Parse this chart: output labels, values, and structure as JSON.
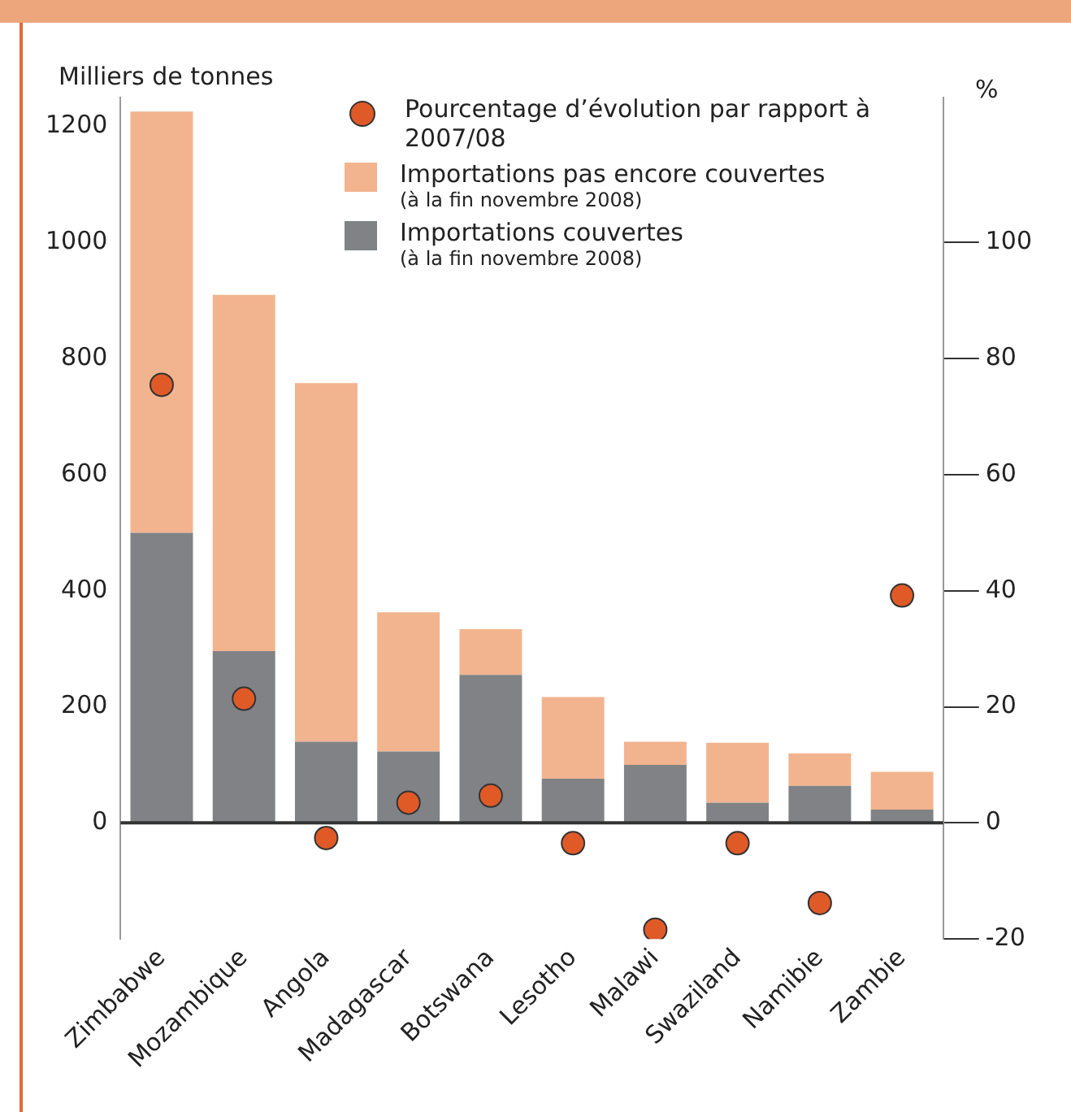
{
  "chart_data": {
    "type": "bar",
    "stacked": true,
    "ylabel": "Milliers de tonnes",
    "y2label": "%",
    "categories": [
      "Zimbabwe",
      "Mozambique",
      "Angola",
      "Madagascar",
      "Botswana",
      "Lesotho",
      "Malawi",
      "Swaziland",
      "Namibie",
      "Zambie"
    ],
    "series": [
      {
        "name": "Importations couvertes (à la fin novembre 2008)",
        "color": "#808285",
        "values": [
          500,
          296,
          140,
          123,
          255,
          76,
          100,
          35,
          64,
          23
        ]
      },
      {
        "name": "Importations pas encore couvertes (à la fin novembre 2008)",
        "color": "#f2b48f",
        "values": [
          726,
          614,
          618,
          240,
          79,
          141,
          40,
          103,
          56,
          65
        ]
      },
      {
        "name": "Pourcentage d’évolution par rapport à 2007/08",
        "type": "scatter",
        "axis": "y2",
        "marker": "circle",
        "color": "#e05a28",
        "values": [
          75.5,
          21.4,
          -2.6,
          3.5,
          4.7,
          -3.5,
          -18.4,
          -3.5,
          -13.8,
          39.2
        ]
      }
    ],
    "ylim": [
      -200,
      1250
    ],
    "yticks": [
      0,
      200,
      400,
      600,
      800,
      {
        "value": 1000,
        "label": "1000"
      },
      {
        "value": 1200,
        "label": "1200"
      }
    ],
    "y2lim": [
      -20,
      125
    ],
    "y2ticks": [
      -20,
      0,
      20,
      40,
      60,
      80,
      100
    ],
    "ref_lines": [
      {
        "axis": "y",
        "value": 0,
        "color": "#333333"
      }
    ],
    "grid": false,
    "legend": "top"
  }
}
